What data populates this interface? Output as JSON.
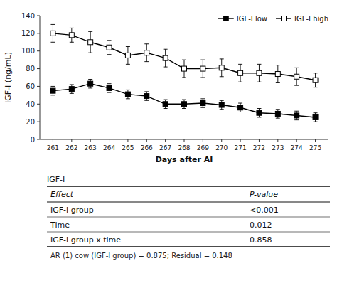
{
  "chart_data": {
    "type": "line",
    "xlabel": "Days after AI",
    "ylabel": "IGF-I (ng/mL)",
    "x": [
      261,
      262,
      263,
      264,
      265,
      266,
      267,
      268,
      269,
      270,
      271,
      272,
      273,
      274,
      275
    ],
    "xlim": [
      260.3,
      275.7
    ],
    "xticks": [
      261,
      262,
      263,
      264,
      265,
      266,
      267,
      268,
      269,
      270,
      271,
      272,
      273,
      274,
      275
    ],
    "ylim": [
      0,
      140
    ],
    "yticks": [
      0,
      20,
      40,
      60,
      80,
      100,
      120,
      140
    ],
    "legend": "upper right",
    "series": [
      {
        "name": "IGF-I low",
        "color": "black",
        "marker": "square",
        "values": [
          55,
          57,
          63,
          58,
          51,
          49,
          40,
          40,
          41,
          39,
          36,
          30,
          29,
          27,
          25
        ],
        "errors": [
          5,
          5,
          5,
          5,
          5,
          5,
          5,
          5,
          5,
          5,
          5,
          5,
          5,
          5,
          5
        ]
      },
      {
        "name": "IGF-I high",
        "color": "black",
        "marker": "open_square",
        "values": [
          120,
          118,
          110,
          104,
          95,
          98,
          92,
          80,
          80,
          81,
          75,
          75,
          74,
          71,
          67
        ],
        "errors": [
          10,
          8,
          12,
          8,
          10,
          10,
          10,
          10,
          10,
          10,
          10,
          10,
          10,
          10,
          8
        ]
      }
    ],
    "table": {
      "title": "IGF-I",
      "columns": [
        "Effect",
        "P-value"
      ],
      "rows": [
        [
          "IGF-I group",
          "<0.001"
        ],
        [
          "Time",
          "0.012"
        ],
        [
          "IGF-I group x time",
          "0.858"
        ]
      ],
      "footnote": "AR (1) cow (IGF-I group) = 0.875; Residual = 0.148"
    }
  }
}
